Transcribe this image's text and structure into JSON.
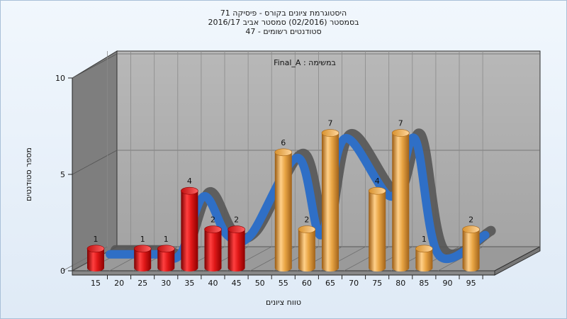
{
  "title_lines": [
    "היסטוגרמת ציונים בקורס - פיסיקה 71",
    "בסמסטר  (02/2016)  סמסטר אביב 2016/17",
    "סטודנטים רשומים - 47"
  ],
  "legend_text": "במשימה : Final_A",
  "chart_data": {
    "type": "bar",
    "title": "היסטוגרמת ציונים בקורס - פיסיקה 71",
    "xlabel": "טווח ציונים",
    "ylabel": "מספר סטודנטים",
    "ylim": [
      0,
      10
    ],
    "y_ticks": [
      0,
      5,
      10
    ],
    "x_ticks": [
      15,
      20,
      25,
      30,
      35,
      40,
      45,
      50,
      55,
      60,
      65,
      70,
      75,
      80,
      85,
      90,
      95
    ],
    "bars": [
      {
        "bin": 15,
        "value": 1,
        "color": "red"
      },
      {
        "bin": 25,
        "value": 1,
        "color": "red"
      },
      {
        "bin": 30,
        "value": 1,
        "color": "red"
      },
      {
        "bin": 35,
        "value": 4,
        "color": "red"
      },
      {
        "bin": 40,
        "value": 2,
        "color": "red"
      },
      {
        "bin": 45,
        "value": 2,
        "color": "red"
      },
      {
        "bin": 55,
        "value": 6,
        "color": "orange"
      },
      {
        "bin": 60,
        "value": 2,
        "color": "orange"
      },
      {
        "bin": 65,
        "value": 7,
        "color": "orange"
      },
      {
        "bin": 75,
        "value": 4,
        "color": "orange"
      },
      {
        "bin": 80,
        "value": 7,
        "color": "orange"
      },
      {
        "bin": 85,
        "value": 1,
        "color": "orange"
      },
      {
        "bin": 95,
        "value": 2,
        "color": "orange"
      }
    ],
    "trend_line": "smoothed curve through bar values",
    "grid": true,
    "colors": {
      "fail": "#d81b1b",
      "pass": "#e8a53c",
      "trend": "#2f6fc6",
      "trend_shadow": "#555555"
    }
  }
}
